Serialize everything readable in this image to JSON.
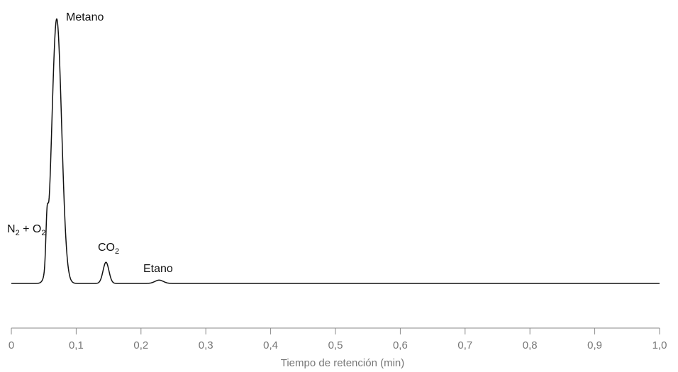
{
  "chart_data": {
    "type": "line",
    "xlabel": "Tiempo de retención (min)",
    "xlim": [
      0,
      1.0
    ],
    "ylim": [
      0,
      420
    ],
    "x_ticks": [
      0,
      0.1,
      0.2,
      0.3,
      0.4,
      0.5,
      0.6,
      0.7,
      0.8,
      0.9,
      1.0
    ],
    "x_tick_labels": [
      "0",
      "0,1",
      "0,2",
      "0,3",
      "0,4",
      "0,5",
      "0,6",
      "0,7",
      "0,8",
      "0,9",
      "1,0"
    ],
    "grid": false,
    "baseline": 0,
    "peaks": [
      {
        "label": "N2 + O2",
        "retention_time": 0.055,
        "height": 60,
        "width": 0.0018
      },
      {
        "label": "Metano",
        "retention_time": 0.07,
        "height": 400,
        "width": 0.0075,
        "truncated": true
      },
      {
        "label": "CO2",
        "retention_time": 0.146,
        "height": 32,
        "width": 0.0045
      },
      {
        "label": "Etano",
        "retention_time": 0.228,
        "height": 5,
        "width": 0.0065
      }
    ],
    "annotations": [
      {
        "peak": "N2 + O2",
        "text": "N",
        "sub1": "2",
        "mid": " + O",
        "sub2": "2"
      },
      {
        "peak": "Metano",
        "text": "Metano"
      },
      {
        "peak": "CO2",
        "text": "CO",
        "sub1": "2"
      },
      {
        "peak": "Etano",
        "text": "Etano"
      }
    ]
  }
}
